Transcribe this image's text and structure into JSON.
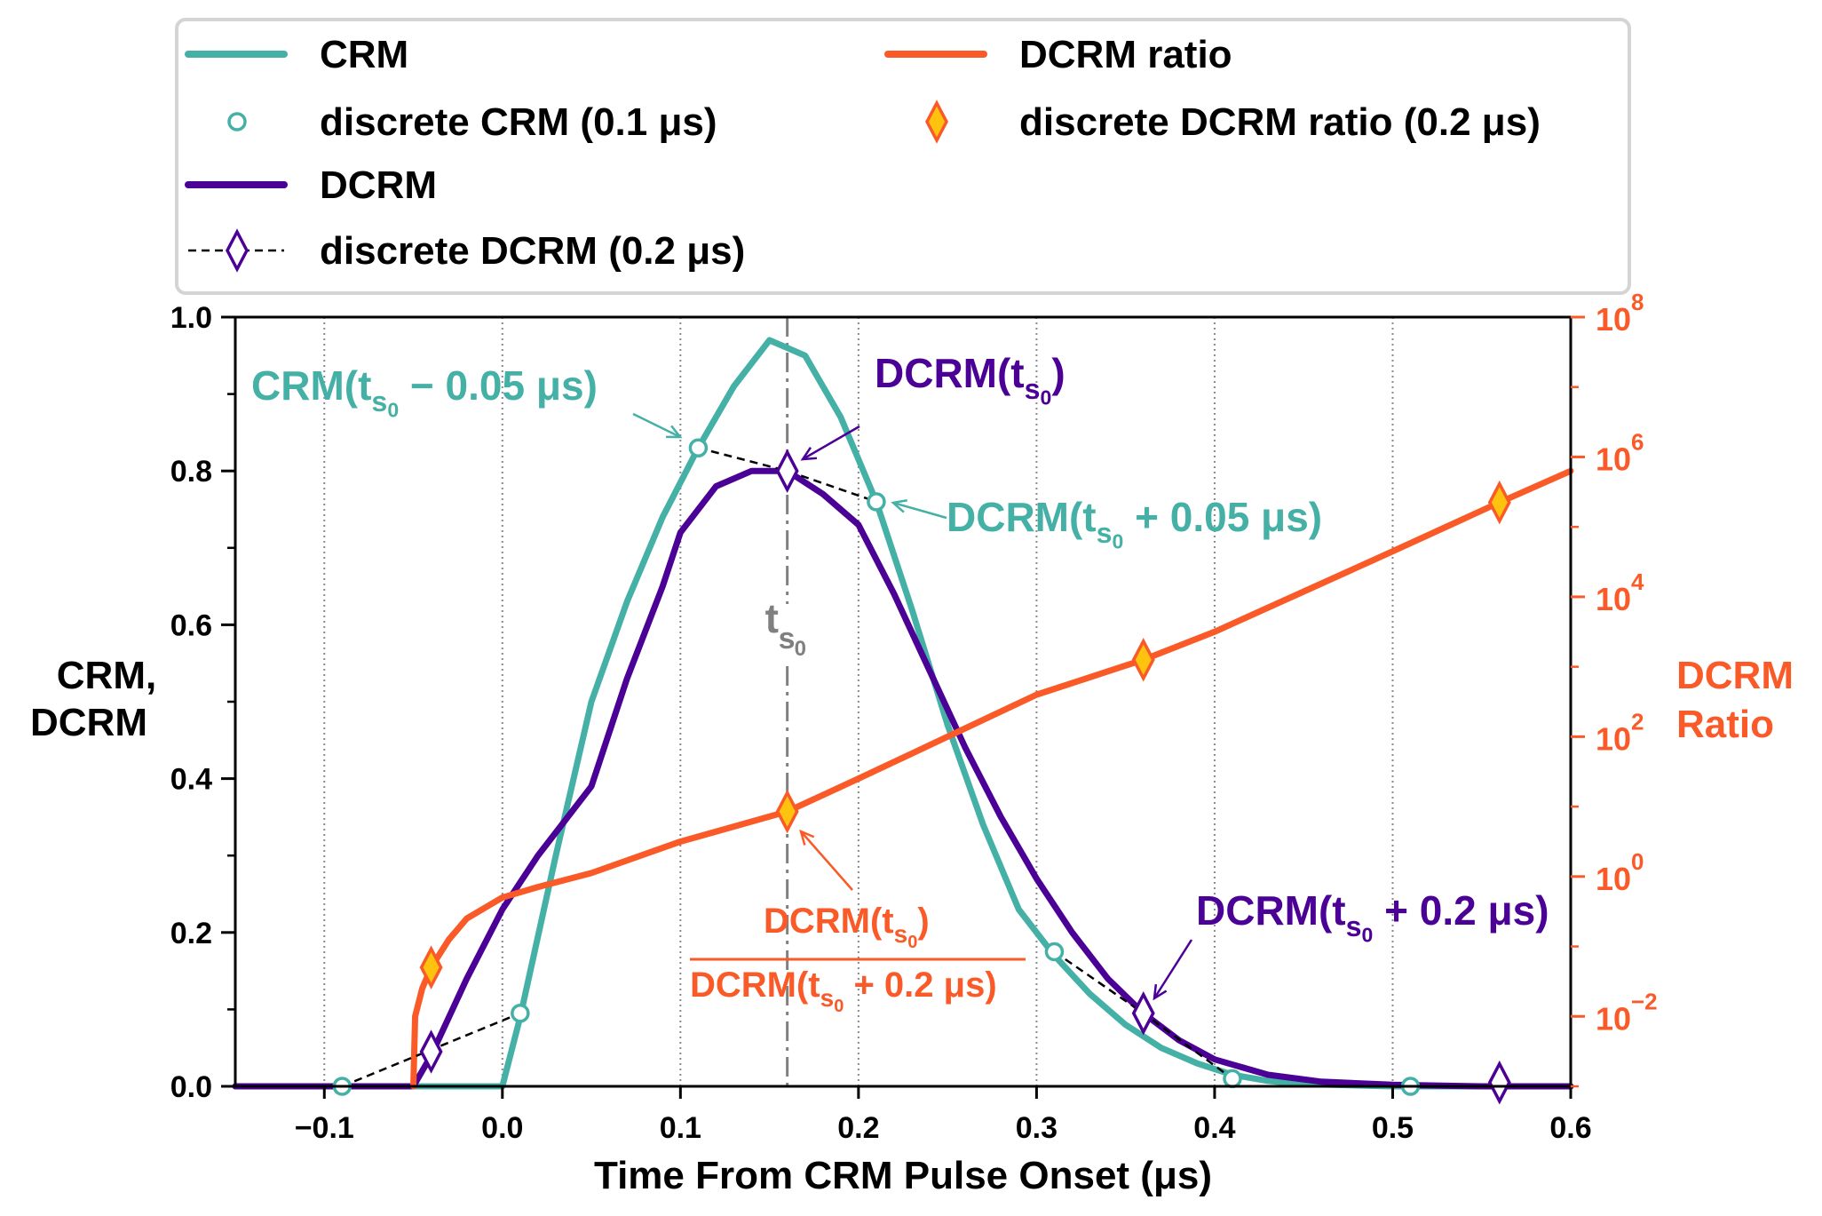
{
  "chart_data": {
    "type": "line",
    "xlabel": "Time From CRM Pulse Onset (μs)",
    "ylabel_left": [
      "CRM,",
      "DCRM"
    ],
    "ylabel_right": [
      "DCRM",
      "Ratio"
    ],
    "xlim": [
      -0.15,
      0.6
    ],
    "ylim_left": [
      0.0,
      1.0
    ],
    "ylim_right_log10": [
      -3,
      8
    ],
    "x_ticks": [
      -0.1,
      0.0,
      0.1,
      0.2,
      0.3,
      0.4,
      0.5,
      0.6
    ],
    "x_tick_labels": [
      "−0.1",
      "0.0",
      "0.1",
      "0.2",
      "0.3",
      "0.4",
      "0.5",
      "0.6"
    ],
    "y_ticks_left": [
      0.0,
      0.2,
      0.4,
      0.6,
      0.8,
      1.0
    ],
    "y_tick_labels_left": [
      "0.0",
      "0.2",
      "0.4",
      "0.6",
      "0.8",
      "1.0"
    ],
    "y_ticks_right_exp": [
      -2,
      0,
      2,
      4,
      6,
      8
    ],
    "grid": "vertical dotted at x ticks",
    "legend": {
      "placement": "top",
      "entries": [
        {
          "label": "CRM",
          "style": "line",
          "color": "#45b0a6"
        },
        {
          "label": "discrete CRM (0.1 μs)",
          "style": "open-circle",
          "color": "#45b0a6"
        },
        {
          "label": "DCRM",
          "style": "line",
          "color": "#4b0096"
        },
        {
          "label": "discrete DCRM (0.2 μs)",
          "style": "dashed-open-diamond",
          "color": "#4b0096"
        },
        {
          "label": "DCRM ratio",
          "style": "line",
          "color": "#fa5a28"
        },
        {
          "label": "discrete DCRM ratio (0.2 μs)",
          "style": "filled-diamond",
          "color": "#fa5a28",
          "fill": "#ffc20e"
        }
      ]
    },
    "series": [
      {
        "name": "CRM",
        "axis": "left",
        "color": "#45b0a6",
        "x": [
          -0.15,
          0.0,
          0.01,
          0.03,
          0.05,
          0.07,
          0.09,
          0.11,
          0.13,
          0.15,
          0.17,
          0.19,
          0.21,
          0.23,
          0.25,
          0.27,
          0.29,
          0.31,
          0.33,
          0.35,
          0.37,
          0.39,
          0.41,
          0.43,
          0.45,
          0.5,
          0.6
        ],
        "y": [
          0.0,
          0.0,
          0.09,
          0.3,
          0.5,
          0.63,
          0.74,
          0.83,
          0.91,
          0.97,
          0.95,
          0.87,
          0.76,
          0.62,
          0.47,
          0.34,
          0.23,
          0.17,
          0.12,
          0.08,
          0.05,
          0.03,
          0.015,
          0.007,
          0.003,
          0.0,
          0.0
        ]
      },
      {
        "name": "DCRM",
        "axis": "left",
        "color": "#4b0096",
        "x": [
          -0.15,
          -0.05,
          -0.04,
          -0.02,
          0.0,
          0.02,
          0.05,
          0.07,
          0.09,
          0.1,
          0.12,
          0.14,
          0.16,
          0.18,
          0.2,
          0.22,
          0.24,
          0.26,
          0.28,
          0.3,
          0.32,
          0.34,
          0.36,
          0.38,
          0.4,
          0.43,
          0.46,
          0.5,
          0.55,
          0.6
        ],
        "y": [
          0.0,
          0.0,
          0.04,
          0.14,
          0.23,
          0.3,
          0.39,
          0.53,
          0.65,
          0.72,
          0.78,
          0.8,
          0.8,
          0.77,
          0.73,
          0.64,
          0.54,
          0.44,
          0.35,
          0.27,
          0.2,
          0.14,
          0.095,
          0.06,
          0.035,
          0.015,
          0.006,
          0.002,
          0.0,
          0.0
        ]
      },
      {
        "name": "DCRM ratio",
        "axis": "right",
        "scale": "log10",
        "color": "#fa5a28",
        "x": [
          -0.05,
          -0.049,
          -0.045,
          -0.04,
          -0.03,
          -0.02,
          0.0,
          0.02,
          0.05,
          0.1,
          0.16,
          0.2,
          0.3,
          0.36,
          0.4,
          0.5,
          0.56,
          0.6
        ],
        "log10_y": [
          -3,
          -2.0,
          -1.6,
          -1.3,
          -0.9,
          -0.6,
          -0.3,
          -0.15,
          0.05,
          0.5,
          0.93,
          1.4,
          2.6,
          3.1,
          3.5,
          4.65,
          5.35,
          5.8
        ]
      }
    ],
    "discrete_points": [
      {
        "name": "discrete CRM (0.1 μs)",
        "marker": "open-circle",
        "color": "#45b0a6",
        "x": [
          -0.09,
          0.01,
          0.11,
          0.21,
          0.31,
          0.41,
          0.51
        ],
        "y": [
          0.0,
          0.095,
          0.83,
          0.76,
          0.175,
          0.01,
          0.0
        ]
      },
      {
        "name": "discrete DCRM (0.2 μs)",
        "marker": "open-diamond",
        "color": "#4b0096",
        "x": [
          -0.04,
          0.16,
          0.36,
          0.56
        ],
        "y": [
          0.045,
          0.8,
          0.095,
          0.005
        ]
      },
      {
        "name": "discrete DCRM ratio (0.2 μs)",
        "marker": "filled-diamond",
        "color": "#fa5a28",
        "fill": "#ffc20e",
        "x": [
          -0.04,
          0.16,
          0.36,
          0.56
        ],
        "log10_y": [
          -1.3,
          0.93,
          3.1,
          5.35
        ]
      }
    ],
    "dashed_connector": {
      "segments": [
        {
          "x": [
            -0.09,
            0.01
          ],
          "y": [
            0.0,
            0.095
          ]
        },
        {
          "x": [
            0.11,
            0.16,
            0.21
          ],
          "y": [
            0.83,
            0.8,
            0.76
          ]
        },
        {
          "x": [
            0.31,
            0.36,
            0.41
          ],
          "y": [
            0.175,
            0.095,
            0.01
          ]
        }
      ]
    },
    "vline": {
      "x": 0.16,
      "label": "t",
      "sub": "s",
      "subsub": "0",
      "color": "#808080"
    },
    "annotations": [
      {
        "id": "crm-minus",
        "text_main": "CRM(t",
        "text_tail": " − 0.05 μs)",
        "color": "#45b0a6",
        "target_x": 0.11,
        "target_y": 0.83
      },
      {
        "id": "dcrm-ts0",
        "text_main": "DCRM(t",
        "text_tail": ")",
        "color": "#4b0096",
        "target_x": 0.16,
        "target_y": 0.8
      },
      {
        "id": "dcrm-plus005",
        "text_main": "DCRM(t",
        "text_tail": " + 0.05 μs)",
        "color": "#45b0a6",
        "target_x": 0.21,
        "target_y": 0.76
      },
      {
        "id": "dcrm-plus02",
        "text_main": "DCRM(t",
        "text_tail": " + 0.2 μs)",
        "color": "#4b0096",
        "target_x": 0.36,
        "target_y": 0.095
      },
      {
        "id": "ratio-frac",
        "numerator_main": "DCRM(t",
        "numerator_tail": ")",
        "denominator_main": "DCRM(t",
        "denominator_tail": " + 0.2 μs)",
        "color": "#fa5a28",
        "target_x": 0.16
      }
    ],
    "subscript": {
      "s": "s",
      "zero": "0"
    }
  }
}
